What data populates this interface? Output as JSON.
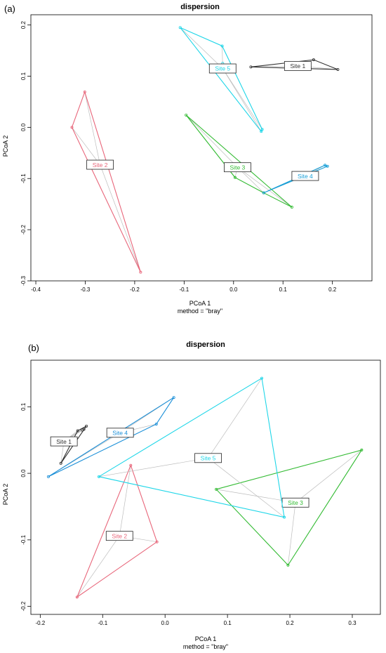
{
  "panels": [
    {
      "tag": "(a)",
      "title": "dispersion",
      "xlabel": "PCoA 1",
      "ylabel": "PCoA 2",
      "subtitle": "method = \"bray\""
    },
    {
      "tag": "(b)",
      "title": "dispersion",
      "xlabel": "PCoA 1",
      "ylabel": "PCoA 2",
      "subtitle": "method = \"bray\""
    }
  ],
  "chart_data": [
    {
      "type": "scatter",
      "title": "dispersion",
      "xlabel": "PCoA 1",
      "ylabel": "PCoA 2",
      "xlim": [
        -0.41,
        0.28
      ],
      "ylim": [
        -0.3,
        0.22
      ],
      "xticks": [
        -0.4,
        -0.3,
        -0.2,
        -0.1,
        0.0,
        0.1,
        0.2
      ],
      "yticks": [
        -0.3,
        -0.2,
        -0.1,
        0.0,
        0.1,
        0.2
      ],
      "xtick_labels": [
        "-0.4",
        "-0.3",
        "-0.2",
        "-0.1",
        "0.0",
        "0.1",
        "0.2"
      ],
      "ytick_labels": [
        "-0.3",
        "-0.2",
        "-0.1",
        "0.0",
        "0.1",
        "0.2"
      ],
      "grid": false,
      "series": [
        {
          "label": "Site 1",
          "color": "#333333",
          "centroid": [
            0.13,
            0.12
          ],
          "points": [
            [
              0.035,
              0.118
            ],
            [
              0.162,
              0.132
            ],
            [
              0.211,
              0.113
            ]
          ],
          "hull": [
            0,
            1,
            2
          ]
        },
        {
          "label": "Site 2",
          "color": "#e8667a",
          "centroid": [
            -0.27,
            -0.073
          ],
          "points": [
            [
              -0.301,
              0.069
            ],
            [
              -0.327,
              0.0
            ],
            [
              -0.188,
              -0.283
            ]
          ],
          "hull": [
            0,
            1,
            2
          ]
        },
        {
          "label": "Site 3",
          "color": "#33bb33",
          "centroid": [
            0.008,
            -0.078
          ],
          "points": [
            [
              -0.096,
              0.024
            ],
            [
              0.003,
              -0.098
            ],
            [
              0.061,
              -0.128
            ],
            [
              0.118,
              -0.156
            ]
          ],
          "hull": [
            0,
            3,
            2,
            1
          ]
        },
        {
          "label": "Site 4",
          "color": "#1aa0d8",
          "centroid": [
            0.145,
            -0.095
          ],
          "points": [
            [
              0.061,
              -0.128
            ],
            [
              0.19,
              -0.076
            ],
            [
              0.185,
              -0.074
            ]
          ],
          "hull": [
            0,
            1,
            2
          ]
        },
        {
          "label": "Site 5",
          "color": "#1ed6e8",
          "centroid": [
            -0.022,
            0.115
          ],
          "points": [
            [
              -0.108,
              0.195
            ],
            [
              -0.023,
              0.159
            ],
            [
              -0.022,
              0.125
            ],
            [
              0.056,
              -0.008
            ],
            [
              0.058,
              -0.004
            ]
          ],
          "hull": [
            0,
            1,
            4,
            3
          ]
        }
      ]
    },
    {
      "type": "scatter",
      "title": "dispersion",
      "xlabel": "PCoA 1",
      "ylabel": "PCoA 2",
      "xlim": [
        -0.215,
        0.345
      ],
      "ylim": [
        -0.212,
        0.17
      ],
      "xticks": [
        -0.2,
        -0.1,
        0.0,
        0.1,
        0.2,
        0.3
      ],
      "yticks": [
        -0.2,
        -0.1,
        0.0,
        0.1
      ],
      "xtick_labels": [
        "-0.2",
        "-0.1",
        "0.0",
        "0.1",
        "0.2",
        "0.3"
      ],
      "ytick_labels": [
        "-0.2",
        "-0.1",
        "0.0",
        "0.1"
      ],
      "grid": false,
      "series": [
        {
          "label": "Site 1",
          "color": "#333333",
          "centroid": [
            -0.162,
            0.048
          ],
          "points": [
            [
              -0.126,
              0.071
            ],
            [
              -0.14,
              0.064
            ],
            [
              -0.133,
              0.065
            ],
            [
              -0.13,
              0.066
            ],
            [
              -0.167,
              0.015
            ]
          ],
          "hull": [
            4,
            0,
            1
          ]
        },
        {
          "label": "Site 2",
          "color": "#e8667a",
          "centroid": [
            -0.073,
            -0.094
          ],
          "points": [
            [
              -0.055,
              0.012
            ],
            [
              -0.013,
              -0.103
            ],
            [
              -0.141,
              -0.186
            ]
          ],
          "hull": [
            0,
            1,
            2
          ]
        },
        {
          "label": "Site 3",
          "color": "#33bb33",
          "centroid": [
            0.209,
            -0.044
          ],
          "points": [
            [
              0.315,
              0.035
            ],
            [
              0.082,
              -0.024
            ],
            [
              0.197,
              -0.138
            ]
          ],
          "hull": [
            0,
            1,
            2
          ]
        },
        {
          "label": "Site 4",
          "color": "#1a8fd8",
          "centroid": [
            -0.072,
            0.061
          ],
          "points": [
            [
              0.014,
              0.114
            ],
            [
              -0.014,
              0.074
            ],
            [
              -0.187,
              -0.005
            ]
          ],
          "hull": [
            0,
            1,
            2
          ]
        },
        {
          "label": "Site 5",
          "color": "#1ed6e8",
          "centroid": [
            0.069,
            0.023
          ],
          "points": [
            [
              0.155,
              0.143
            ],
            [
              -0.106,
              -0.005
            ],
            [
              0.191,
              -0.066
            ]
          ],
          "hull": [
            0,
            1,
            2
          ]
        }
      ]
    }
  ]
}
